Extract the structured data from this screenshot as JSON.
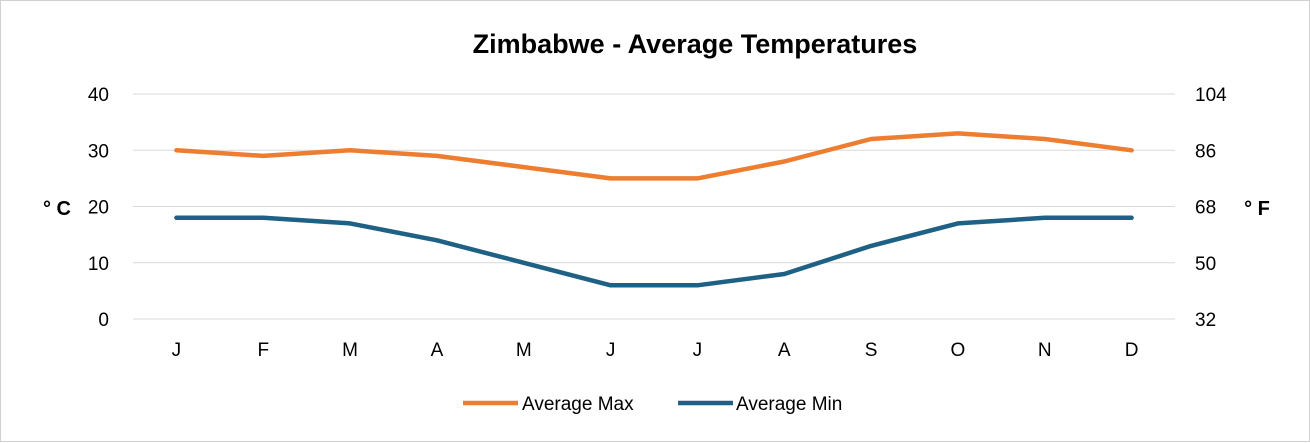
{
  "chart_data": {
    "type": "line",
    "title": "Zimbabwe - Average Temperatures",
    "categories": [
      "J",
      "F",
      "M",
      "A",
      "M",
      "J",
      "J",
      "A",
      "S",
      "O",
      "N",
      "D"
    ],
    "series": [
      {
        "name": "Average Max",
        "color": "#ED7D31",
        "values": [
          30,
          29,
          30,
          29,
          27,
          25,
          25,
          28,
          32,
          33,
          32,
          30
        ]
      },
      {
        "name": "Average Min",
        "color": "#1F6085",
        "values": [
          18,
          18,
          17,
          14,
          10,
          6,
          6,
          8,
          13,
          17,
          18,
          18
        ]
      }
    ],
    "ylabel": "° C",
    "ylabel_right": "° F",
    "ylim": [
      0,
      40
    ],
    "yticks": [
      "0",
      "10",
      "20",
      "30",
      "40"
    ],
    "ylim_right": [
      32,
      104
    ],
    "yticks_right": [
      "32",
      "50",
      "68",
      "86",
      "104"
    ],
    "grid": true,
    "legend_position": "bottom"
  }
}
